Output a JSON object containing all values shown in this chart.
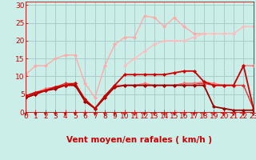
{
  "background_color": "#cceee8",
  "grid_color": "#aacccc",
  "xlabel": "Vent moyen/en rafales ( km/h )",
  "xlim": [
    0,
    23
  ],
  "ylim": [
    0,
    31
  ],
  "xticks": [
    0,
    1,
    2,
    3,
    4,
    5,
    6,
    7,
    8,
    9,
    10,
    11,
    12,
    13,
    14,
    15,
    16,
    17,
    18,
    19,
    20,
    21,
    22,
    23
  ],
  "yticks": [
    0,
    5,
    10,
    15,
    20,
    25,
    30
  ],
  "x": [
    0,
    1,
    2,
    3,
    4,
    5,
    6,
    7,
    8,
    9,
    10,
    11,
    12,
    13,
    14,
    15,
    16,
    17,
    18,
    19,
    20,
    21,
    22,
    23
  ],
  "series": [
    {
      "y": [
        10.5,
        13,
        13,
        15,
        16,
        16,
        8,
        4,
        13,
        19,
        21,
        21,
        27,
        26.5,
        24,
        26.5,
        24,
        22,
        22,
        null,
        null,
        null,
        null,
        null
      ],
      "color": "#ffaaaa",
      "linewidth": 1.0,
      "marker": "D",
      "markersize": 2.5,
      "zorder": 2
    },
    {
      "y": [
        null,
        null,
        null,
        null,
        null,
        null,
        null,
        null,
        null,
        null,
        13,
        15,
        17,
        19,
        20,
        20,
        20,
        21,
        22,
        22,
        22,
        22,
        24,
        24
      ],
      "color": "#ffbbbb",
      "linewidth": 1.0,
      "marker": "D",
      "markersize": 2.5,
      "zorder": 2
    },
    {
      "y": [
        4.5,
        5.5,
        6,
        7,
        7.5,
        8,
        3.5,
        1,
        4.5,
        7.5,
        10.5,
        10.5,
        10.5,
        10.5,
        10.5,
        11,
        11.5,
        11.5,
        8.5,
        7.5,
        7.5,
        7.5,
        13,
        1
      ],
      "color": "#cc0000",
      "linewidth": 1.3,
      "marker": "D",
      "markersize": 2.5,
      "zorder": 5
    },
    {
      "y": [
        4.0,
        5.0,
        6.0,
        6.5,
        7.5,
        7.5,
        3.0,
        1.0,
        4.0,
        7.0,
        7.5,
        7.5,
        7.5,
        7.5,
        7.5,
        7.5,
        7.5,
        7.5,
        7.5,
        1.5,
        1.0,
        0.5,
        0.5,
        0.5
      ],
      "color": "#990000",
      "linewidth": 1.3,
      "marker": "D",
      "markersize": 2.5,
      "zorder": 4
    },
    {
      "y": [
        4.0,
        5.0,
        6.5,
        7.0,
        8.0,
        8.0,
        3.0,
        1.0,
        4.0,
        7.5,
        7.5,
        7.5,
        7.5,
        7.5,
        7.5,
        7.5,
        8.0,
        8.0,
        8.0,
        7.5,
        7.5,
        7.5,
        7.5,
        1.0
      ],
      "color": "#dd3333",
      "linewidth": 1.0,
      "marker": "D",
      "markersize": 2.5,
      "zorder": 3
    },
    {
      "y": [
        4.0,
        5.5,
        6.5,
        7.0,
        7.5,
        7.5,
        3.5,
        1.0,
        4.5,
        7.5,
        7.5,
        7.5,
        8.0,
        7.5,
        7.5,
        7.5,
        8.0,
        8.0,
        8.5,
        8.0,
        7.5,
        7.5,
        13.0,
        13.0
      ],
      "color": "#ff7777",
      "linewidth": 1.0,
      "marker": "D",
      "markersize": 2.5,
      "zorder": 3
    }
  ],
  "arrow_color": "#cc0000",
  "tick_color": "#cc0000",
  "axis_color": "#cc0000",
  "xlabel_color": "#cc0000",
  "xlabel_fontsize": 7.5,
  "tick_fontsize": 6.5
}
